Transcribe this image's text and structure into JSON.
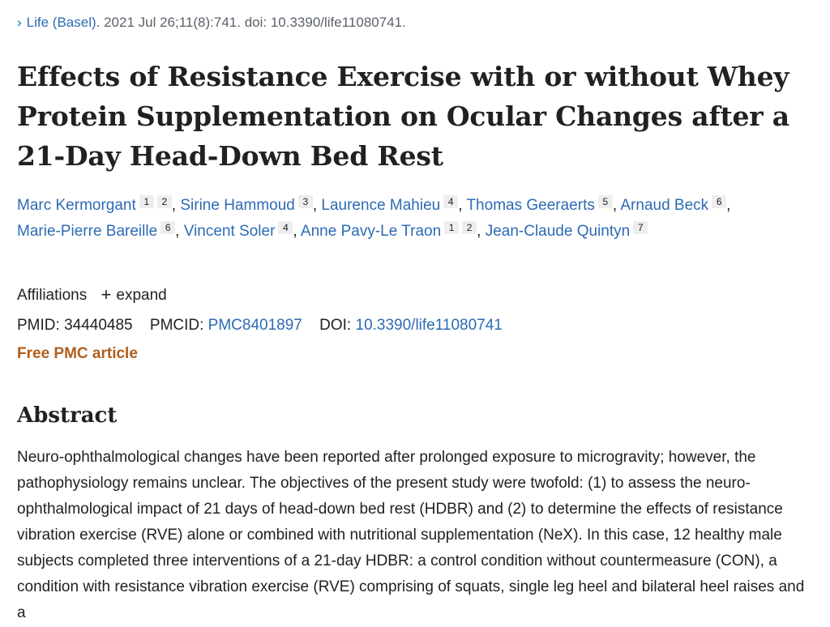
{
  "citation": {
    "journal": "Life (Basel)",
    "details": ". 2021 Jul 26;11(8):741. doi: 10.3390/life11080741."
  },
  "title": "Effects of Resistance Exercise with or without Whey Protein Supplementation on Ocular Changes after a 21-Day Head-Down Bed Rest",
  "authors": [
    {
      "name": "Marc Kermorgant",
      "affs": [
        "1",
        "2"
      ]
    },
    {
      "name": "Sirine Hammoud",
      "affs": [
        "3"
      ]
    },
    {
      "name": "Laurence Mahieu",
      "affs": [
        "4"
      ]
    },
    {
      "name": "Thomas Geeraerts",
      "affs": [
        "5"
      ]
    },
    {
      "name": "Arnaud Beck",
      "affs": [
        "6"
      ]
    },
    {
      "name": "Marie-Pierre Bareille",
      "affs": [
        "6"
      ]
    },
    {
      "name": "Vincent Soler",
      "affs": [
        "4"
      ]
    },
    {
      "name": "Anne Pavy-Le Traon",
      "affs": [
        "1",
        "2"
      ]
    },
    {
      "name": "Jean-Claude Quintyn",
      "affs": [
        "7"
      ]
    }
  ],
  "affiliations": {
    "label": "Affiliations",
    "expand_label": "expand"
  },
  "identifiers": {
    "pmid_label": "PMID:",
    "pmid": "34440485",
    "pmcid_label": "PMCID:",
    "pmcid": "PMC8401897",
    "doi_label": "DOI:",
    "doi": "10.3390/life11080741"
  },
  "free_article": "Free PMC article",
  "abstract": {
    "heading": "Abstract",
    "text": "Neuro-ophthalmological changes have been reported after prolonged exposure to microgravity; however, the pathophysiology remains unclear. The objectives of the present study were twofold: (1) to assess the neuro-ophthalmological impact of 21 days of head-down bed rest (HDBR) and (2) to determine the effects of resistance vibration exercise (RVE) alone or combined with nutritional supplementation (NeX). In this case, 12 healthy male subjects completed three interventions of a 21-day HDBR: a control condition without countermeasure (CON), a condition with resistance vibration exercise (RVE) comprising of squats, single leg heel and bilateral heel raises and a"
  }
}
